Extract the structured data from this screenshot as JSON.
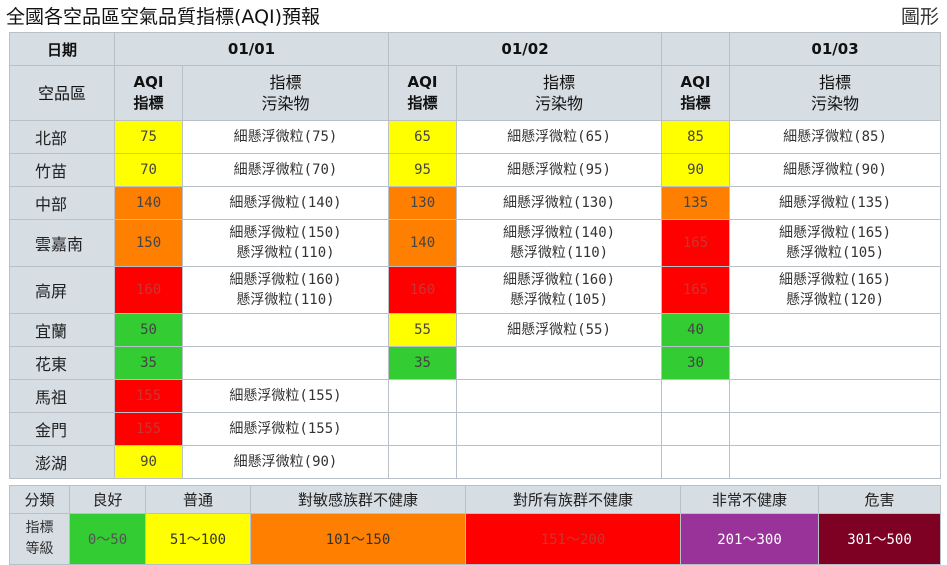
{
  "title": "全國各空品區空氣品質指標(AQI)預報",
  "graph_link": "圖形",
  "header": {
    "date_label": "日期",
    "region_label": "空品區",
    "dates": [
      "01/01",
      "01/02",
      "01/03"
    ],
    "aqi_col": "AQI 指標",
    "pollutant_col": "指標 污染物"
  },
  "colors": {
    "good": "#33cc33",
    "moderate": "#ffff00",
    "sensitive": "#ff7f00",
    "unhealthy": "#ff0000",
    "very_unhealthy": "#993399",
    "hazardous": "#7e0023"
  },
  "rows": [
    {
      "region": "北部",
      "days": [
        {
          "aqi": "75",
          "level": "moderate",
          "pollutants": [
            "細懸浮微粒(75)"
          ]
        },
        {
          "aqi": "65",
          "level": "moderate",
          "pollutants": [
            "細懸浮微粒(65)"
          ]
        },
        {
          "aqi": "85",
          "level": "moderate",
          "pollutants": [
            "細懸浮微粒(85)"
          ]
        }
      ]
    },
    {
      "region": "竹苗",
      "days": [
        {
          "aqi": "70",
          "level": "moderate",
          "pollutants": [
            "細懸浮微粒(70)"
          ]
        },
        {
          "aqi": "95",
          "level": "moderate",
          "pollutants": [
            "細懸浮微粒(95)"
          ]
        },
        {
          "aqi": "90",
          "level": "moderate",
          "pollutants": [
            "細懸浮微粒(90)"
          ]
        }
      ]
    },
    {
      "region": "中部",
      "days": [
        {
          "aqi": "140",
          "level": "sensitive",
          "pollutants": [
            "細懸浮微粒(140)"
          ]
        },
        {
          "aqi": "130",
          "level": "sensitive",
          "pollutants": [
            "細懸浮微粒(130)"
          ]
        },
        {
          "aqi": "135",
          "level": "sensitive",
          "pollutants": [
            "細懸浮微粒(135)"
          ]
        }
      ]
    },
    {
      "region": "雲嘉南",
      "days": [
        {
          "aqi": "150",
          "level": "sensitive",
          "pollutants": [
            "細懸浮微粒(150)",
            "懸浮微粒(110)"
          ]
        },
        {
          "aqi": "140",
          "level": "sensitive",
          "pollutants": [
            "細懸浮微粒(140)",
            "懸浮微粒(110)"
          ]
        },
        {
          "aqi": "165",
          "level": "unhealthy",
          "pollutants": [
            "細懸浮微粒(165)",
            "懸浮微粒(105)"
          ]
        }
      ]
    },
    {
      "region": "高屏",
      "days": [
        {
          "aqi": "160",
          "level": "unhealthy",
          "pollutants": [
            "細懸浮微粒(160)",
            "懸浮微粒(110)"
          ]
        },
        {
          "aqi": "160",
          "level": "unhealthy",
          "pollutants": [
            "細懸浮微粒(160)",
            "懸浮微粒(105)"
          ]
        },
        {
          "aqi": "165",
          "level": "unhealthy",
          "pollutants": [
            "細懸浮微粒(165)",
            "懸浮微粒(120)"
          ]
        }
      ]
    },
    {
      "region": "宜蘭",
      "days": [
        {
          "aqi": "50",
          "level": "good",
          "pollutants": []
        },
        {
          "aqi": "55",
          "level": "moderate",
          "pollutants": [
            "細懸浮微粒(55)"
          ]
        },
        {
          "aqi": "40",
          "level": "good",
          "pollutants": []
        }
      ]
    },
    {
      "region": "花東",
      "days": [
        {
          "aqi": "35",
          "level": "good",
          "pollutants": []
        },
        {
          "aqi": "35",
          "level": "good",
          "pollutants": []
        },
        {
          "aqi": "30",
          "level": "good",
          "pollutants": []
        }
      ]
    },
    {
      "region": "馬祖",
      "days": [
        {
          "aqi": "155",
          "level": "unhealthy",
          "pollutants": [
            "細懸浮微粒(155)"
          ]
        },
        {
          "aqi": "",
          "level": "",
          "pollutants": []
        },
        {
          "aqi": "",
          "level": "",
          "pollutants": []
        }
      ]
    },
    {
      "region": "金門",
      "days": [
        {
          "aqi": "155",
          "level": "unhealthy",
          "pollutants": [
            "細懸浮微粒(155)"
          ]
        },
        {
          "aqi": "",
          "level": "",
          "pollutants": []
        },
        {
          "aqi": "",
          "level": "",
          "pollutants": []
        }
      ]
    },
    {
      "region": "澎湖",
      "days": [
        {
          "aqi": "90",
          "level": "moderate",
          "pollutants": [
            "細懸浮微粒(90)"
          ]
        },
        {
          "aqi": "",
          "level": "",
          "pollutants": []
        },
        {
          "aqi": "",
          "level": "",
          "pollutants": []
        }
      ]
    }
  ],
  "legend": {
    "category_label": "分類",
    "index_label": "指標 等級",
    "items": [
      {
        "name": "良好",
        "range": "0～50",
        "level": "good",
        "text_color": "#555555"
      },
      {
        "name": "普通",
        "range": "51～100",
        "level": "moderate",
        "text_color": "#333333"
      },
      {
        "name": "對敏感族群不健康",
        "range": "101～150",
        "level": "sensitive",
        "text_color": "#333333"
      },
      {
        "name": "對所有族群不健康",
        "range": "151～200",
        "level": "unhealthy",
        "text_color": "#cc3333"
      },
      {
        "name": "非常不健康",
        "range": "201～300",
        "level": "very_unhealthy",
        "text_color": "#ffffff"
      },
      {
        "name": "危害",
        "range": "301～500",
        "level": "hazardous",
        "text_color": "#ffffff"
      }
    ]
  }
}
